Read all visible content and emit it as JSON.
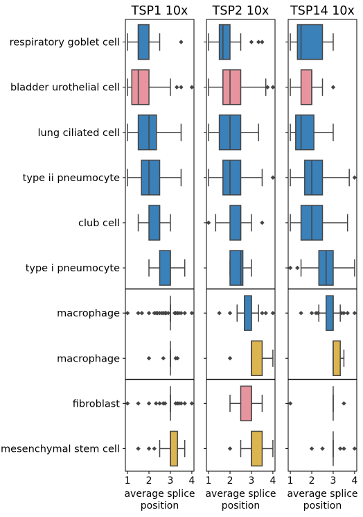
{
  "chart_data": {
    "type": "box",
    "row_labels": [
      "respiratory goblet cell",
      "bladder urothelial cell",
      "lung ciliated cell",
      "type ii pneumocyte",
      "club cell",
      "type i pneumocyte",
      "macrophage",
      "macrophage",
      "fibroblast",
      "mesenchymal stem cell"
    ],
    "row_groups": [
      [
        0,
        5
      ],
      [
        6,
        7
      ],
      [
        8,
        9
      ]
    ],
    "colors": {
      "blue": "#3a80b9",
      "pink": "#e8949e",
      "gold": "#dcb450",
      "line": "#444444"
    },
    "xlim": [
      0.9,
      4.1
    ],
    "xticks": [
      1,
      2,
      3,
      4
    ],
    "xlabel_line1": "average splice",
    "xlabel_line2": "position",
    "panels": [
      {
        "title": "TSP1 10x",
        "boxes": [
          {
            "color": "blue",
            "whislo": 1.0,
            "q1": 1.5,
            "med": 1.5,
            "q3": 2.0,
            "whishi": 2.5,
            "fliers": [
              3.5
            ]
          },
          {
            "color": "pink",
            "whislo": 1.0,
            "q1": 1.2,
            "med": 1.5,
            "q3": 2.0,
            "whishi": 3.0,
            "fliers": [
              3.3,
              3.5,
              4.0
            ]
          },
          {
            "color": "blue",
            "whislo": 1.0,
            "q1": 1.5,
            "med": 2.0,
            "q3": 2.35,
            "whishi": 3.5,
            "fliers": []
          },
          {
            "color": "blue",
            "whislo": 1.0,
            "q1": 1.65,
            "med": 2.0,
            "q3": 2.5,
            "whishi": 3.5,
            "fliers": []
          },
          {
            "color": "blue",
            "whislo": 1.5,
            "q1": 2.0,
            "med": 2.5,
            "q3": 2.5,
            "whishi": 3.0,
            "fliers": []
          },
          {
            "color": "blue",
            "whislo": 2.0,
            "q1": 2.5,
            "med": 3.0,
            "q3": 3.0,
            "whishi": 3.67,
            "fliers": []
          },
          {
            "color": "blue",
            "whislo": 3.0,
            "q1": 3.0,
            "med": 3.0,
            "q3": 3.0,
            "whishi": 3.0,
            "fliers": [
              1.0,
              1.5,
              1.67,
              2.0,
              2.25,
              2.33,
              2.4,
              2.5,
              2.6,
              2.67,
              2.75,
              2.8,
              2.9,
              3.2,
              3.25,
              3.33,
              3.4,
              3.5,
              3.67,
              4.0
            ]
          },
          {
            "color": "gold",
            "whislo": 3.0,
            "q1": 3.0,
            "med": 3.0,
            "q3": 3.0,
            "whishi": 3.0,
            "fliers": [
              2.0,
              2.67,
              3.25,
              3.33
            ]
          },
          {
            "color": "pink",
            "whislo": 3.0,
            "q1": 3.0,
            "med": 3.0,
            "q3": 3.0,
            "whishi": 3.0,
            "fliers": [
              1.0,
              1.5,
              2.0,
              2.33,
              2.5,
              2.67,
              2.75,
              3.25,
              3.33,
              3.4,
              3.5,
              3.67,
              4.0
            ]
          },
          {
            "color": "gold",
            "whislo": 2.5,
            "q1": 3.0,
            "med": 3.0,
            "q3": 3.33,
            "whishi": 3.67,
            "fliers": [
              1.5,
              2.0,
              2.25
            ]
          }
        ]
      },
      {
        "title": "TSP2 10x",
        "boxes": [
          {
            "color": "blue",
            "whislo": 1.0,
            "q1": 1.5,
            "med": 1.67,
            "q3": 2.0,
            "whishi": 2.5,
            "fliers": [
              3.0,
              3.33,
              3.5
            ]
          },
          {
            "color": "pink",
            "whislo": 1.0,
            "q1": 1.67,
            "med": 2.0,
            "q3": 2.5,
            "whishi": 3.67,
            "fliers": [
              3.75,
              4.0
            ]
          },
          {
            "color": "blue",
            "whislo": 1.0,
            "q1": 1.5,
            "med": 2.0,
            "q3": 2.5,
            "whishi": 3.33,
            "fliers": []
          },
          {
            "color": "blue",
            "whislo": 1.0,
            "q1": 1.67,
            "med": 2.0,
            "q3": 2.5,
            "whishi": 3.5,
            "fliers": [
              4.0
            ]
          },
          {
            "color": "blue",
            "whislo": 1.33,
            "q1": 2.0,
            "med": 2.5,
            "q3": 2.5,
            "whishi": 3.0,
            "fliers": [
              1.0,
              3.5
            ]
          },
          {
            "color": "blue",
            "whislo": 2.0,
            "q1": 2.0,
            "med": 2.5,
            "q3": 2.6,
            "whishi": 3.0,
            "fliers": []
          },
          {
            "color": "blue",
            "whislo": 2.33,
            "q1": 2.67,
            "med": 3.0,
            "q3": 3.0,
            "whishi": 3.33,
            "fliers": [
              1.5,
              2.0,
              3.5,
              3.67,
              4.0
            ]
          },
          {
            "color": "gold",
            "whislo": 3.0,
            "q1": 3.0,
            "med": 3.0,
            "q3": 3.5,
            "whishi": 4.0,
            "fliers": [
              2.0
            ]
          },
          {
            "color": "pink",
            "whislo": 2.0,
            "q1": 2.5,
            "med": 3.0,
            "q3": 3.0,
            "whishi": 3.5,
            "fliers": []
          },
          {
            "color": "gold",
            "whislo": 2.5,
            "q1": 3.0,
            "med": 3.0,
            "q3": 3.5,
            "whishi": 4.0,
            "fliers": [
              2.0
            ]
          }
        ]
      },
      {
        "title": "TSP14 10x",
        "boxes": [
          {
            "color": "blue",
            "whislo": 1.0,
            "q1": 1.33,
            "med": 1.5,
            "q3": 2.5,
            "whishi": 3.0,
            "fliers": []
          },
          {
            "color": "pink",
            "whislo": 1.0,
            "q1": 1.5,
            "med": 2.0,
            "q3": 2.0,
            "whishi": 2.5,
            "fliers": [
              3.0
            ]
          },
          {
            "color": "blue",
            "whislo": 1.0,
            "q1": 1.25,
            "med": 1.5,
            "q3": 2.1,
            "whishi": 3.0,
            "fliers": []
          },
          {
            "color": "blue",
            "whislo": 1.0,
            "q1": 1.67,
            "med": 2.0,
            "q3": 2.5,
            "whishi": 3.75,
            "fliers": [
              4.0
            ]
          },
          {
            "color": "blue",
            "whislo": 1.0,
            "q1": 1.5,
            "med": 2.0,
            "q3": 2.5,
            "whishi": 3.67,
            "fliers": []
          },
          {
            "color": "blue",
            "whislo": 1.5,
            "q1": 2.33,
            "med": 2.67,
            "q3": 3.0,
            "whishi": 4.0,
            "fliers": [
              1.0,
              1.33
            ]
          },
          {
            "color": "blue",
            "whislo": 2.33,
            "q1": 2.67,
            "med": 3.0,
            "q3": 3.0,
            "whishi": 3.33,
            "fliers": [
              1.5,
              2.0,
              2.2,
              2.3,
              3.4,
              3.5,
              3.67,
              4.0
            ]
          },
          {
            "color": "gold",
            "whislo": 3.0,
            "q1": 3.0,
            "med": 3.0,
            "q3": 3.33,
            "whishi": 3.5,
            "fliers": []
          },
          {
            "color": "pink",
            "whislo": 3.0,
            "q1": 3.0,
            "med": 3.0,
            "q3": 3.0,
            "whishi": 3.0,
            "fliers": [
              1.0,
              3.5
            ]
          },
          {
            "color": "gold",
            "whislo": 3.0,
            "q1": 3.0,
            "med": 3.0,
            "q3": 3.0,
            "whishi": 3.0,
            "fliers": [
              2.0,
              2.5,
              3.33,
              3.5,
              4.0
            ]
          }
        ]
      }
    ]
  }
}
